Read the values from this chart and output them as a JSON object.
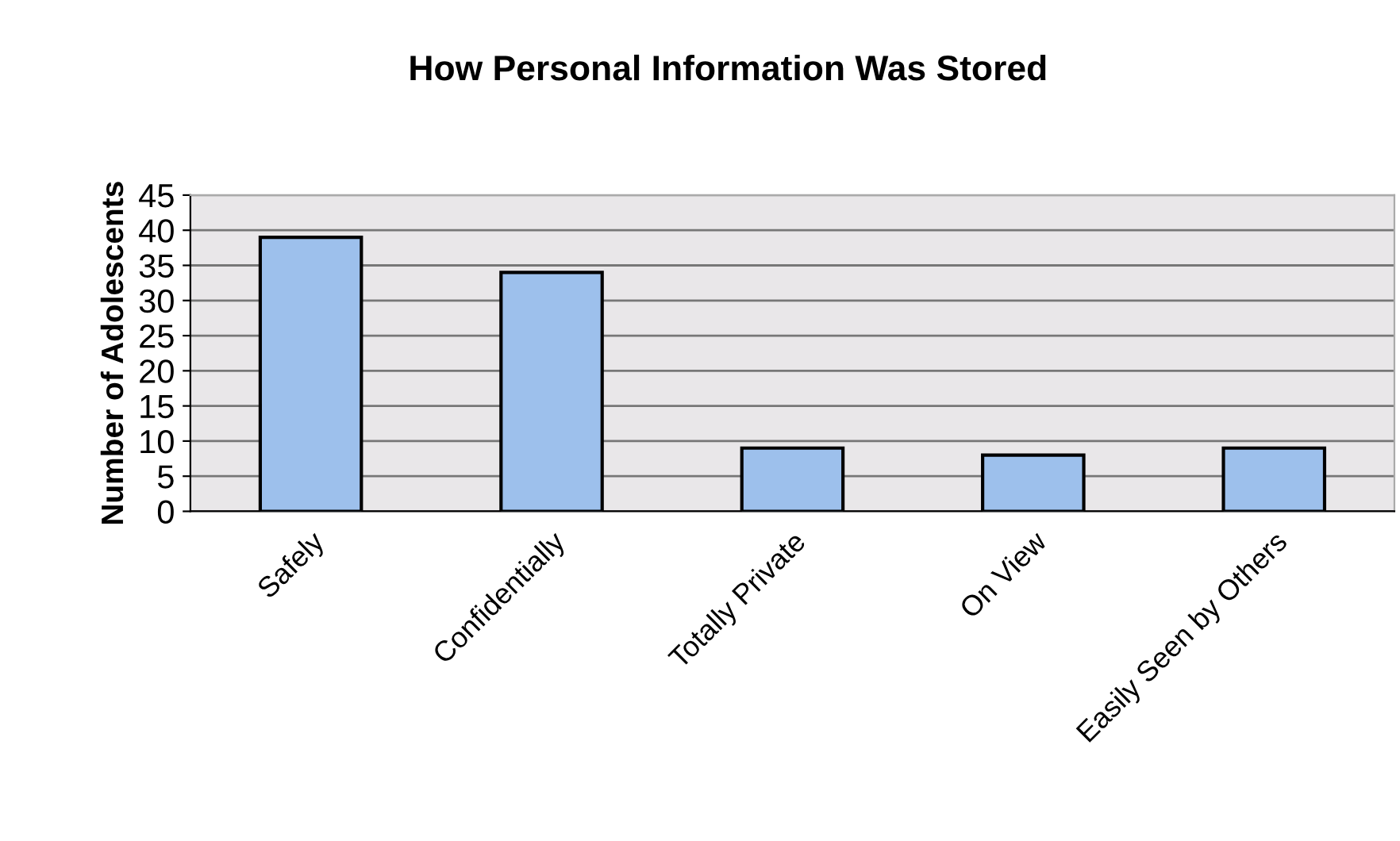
{
  "chart_data": {
    "type": "bar",
    "title": "How Personal Information Was Stored",
    "ylabel": "Number of Adolescents",
    "categories": [
      "Safely",
      "Confidentially",
      "Totally Private",
      "On View",
      "Easily Seen by Others"
    ],
    "values": [
      39,
      34,
      9,
      8,
      9
    ],
    "color": "#9dc0ec",
    "ylim": [
      0,
      45
    ],
    "yticks": [
      0,
      5,
      10,
      15,
      20,
      25,
      30,
      35,
      40,
      45
    ],
    "grid": "y"
  }
}
